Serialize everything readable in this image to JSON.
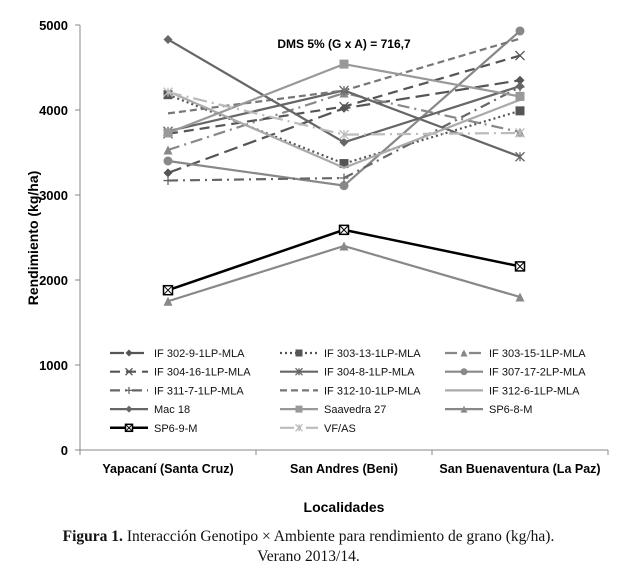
{
  "chart_data": {
    "type": "line",
    "annotation": "DMS  5% (G x A) = 716,7",
    "xlabel": "Localidades",
    "ylabel": "Rendimiento (kg/ha)",
    "ylim": [
      0,
      5000
    ],
    "yticks": [
      "0",
      "1000",
      "2000",
      "3000",
      "4000",
      "5000"
    ],
    "categories": [
      "Yapacaní (Santa Cruz)",
      "San Andres (Beni)",
      "San Buenaventura (La Paz)"
    ],
    "legend_position": "bottom-inside",
    "series": [
      {
        "name": "IF 302-9-1LP-MLA",
        "values": [
          3260,
          4020,
          4350
        ],
        "color": "#555555",
        "dash": "14,6",
        "marker": "diamond"
      },
      {
        "name": "IF 303-13-1LP-MLA",
        "values": [
          4180,
          3370,
          3990
        ],
        "color": "#555555",
        "dash": "2,3",
        "marker": "square"
      },
      {
        "name": "IF 303-15-1LP-MLA",
        "values": [
          3530,
          4200,
          3740
        ],
        "color": "#888888",
        "dash": "12,5,2,5",
        "marker": "triangle"
      },
      {
        "name": "IF 304-16-1LP-MLA",
        "values": [
          3720,
          4040,
          4640
        ],
        "color": "#555555",
        "dash": "10,6",
        "marker": "x"
      },
      {
        "name": "IF 304-8-1LP-MLA",
        "values": [
          3750,
          4230,
          3450
        ],
        "color": "#666666",
        "dash": "",
        "marker": "star"
      },
      {
        "name": "IF 307-17-2LP-MLA",
        "values": [
          3400,
          3110,
          4930
        ],
        "color": "#888888",
        "dash": "",
        "marker": "circle"
      },
      {
        "name": "IF 311-7-1LP-MLA",
        "values": [
          3170,
          3200,
          4270
        ],
        "color": "#666666",
        "dash": "10,5,2,5",
        "marker": "plus"
      },
      {
        "name": "IF 312-10-1LP-MLA",
        "values": [
          3960,
          4230,
          4840
        ],
        "color": "#777777",
        "dash": "7,4",
        "marker": "none"
      },
      {
        "name": "IF 312-6-1LP-MLA",
        "values": [
          4220,
          3320,
          4120
        ],
        "color": "#aaaaaa",
        "dash": "",
        "marker": "none"
      },
      {
        "name": "Mac 18",
        "values": [
          4830,
          3620,
          4280
        ],
        "color": "#666666",
        "dash": "",
        "marker": "diamond"
      },
      {
        "name": "Saavedra 27",
        "values": [
          3730,
          4540,
          4160
        ],
        "color": "#999999",
        "dash": "",
        "marker": "square"
      },
      {
        "name": "SP6-8-M",
        "values": [
          1750,
          2400,
          1800
        ],
        "color": "#888888",
        "dash": "",
        "marker": "triangle"
      },
      {
        "name": "SP6-9-M",
        "values": [
          1880,
          2590,
          2160
        ],
        "color": "#000000",
        "dash": "",
        "marker": "xsquare"
      },
      {
        "name": "VF/AS",
        "values": [
          4210,
          3710,
          3730
        ],
        "color": "#bbbbbb",
        "dash": "14,5,2,5",
        "marker": "star"
      }
    ]
  },
  "caption": {
    "bold": "Figura 1.",
    "text": " Interacción Genotipo × Ambiente para rendimiento de grano (kg/ha).",
    "line2": "Verano 2013/14."
  }
}
